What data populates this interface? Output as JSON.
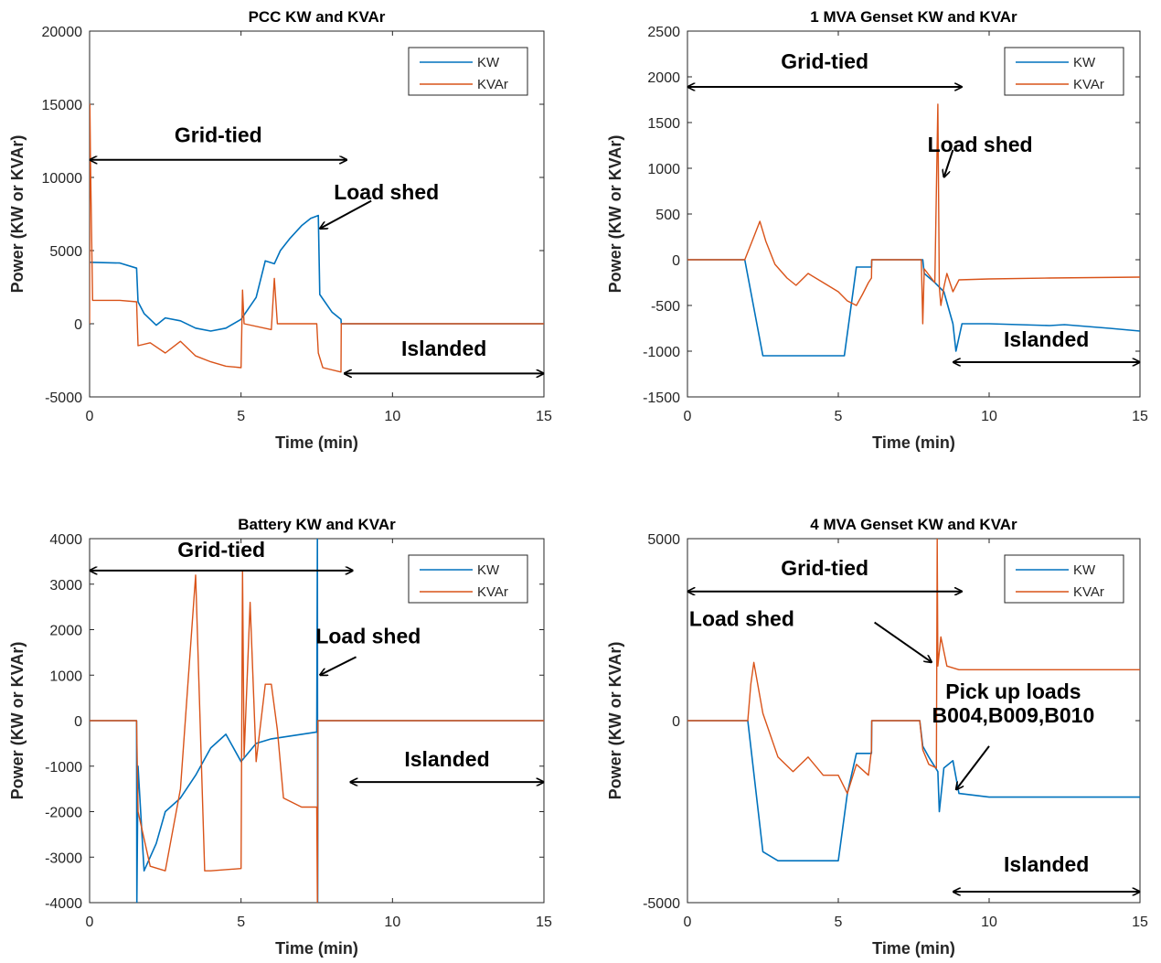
{
  "colors": {
    "kw": "#0072BD",
    "kvar": "#D95319"
  },
  "chart_data": [
    {
      "type": "line",
      "title": "PCC KW and KVAr",
      "xlabel": "Time (min)",
      "ylabel": "Power (KW or KVAr)",
      "xlim": [
        0,
        15
      ],
      "ylim": [
        -5000,
        20000
      ],
      "xticks": [
        0,
        5,
        10,
        15
      ],
      "yticks": [
        -5000,
        0,
        5000,
        10000,
        15000,
        20000
      ],
      "legend": {
        "position": "top-right",
        "entries": [
          "KW",
          "KVAr"
        ]
      },
      "series": [
        {
          "name": "KW",
          "color": "#0072BD",
          "x": [
            0,
            0.02,
            1.0,
            1.55,
            1.6,
            1.8,
            2.2,
            2.5,
            3.0,
            3.5,
            4.0,
            4.5,
            5.0,
            5.5,
            5.8,
            6.1,
            6.3,
            6.6,
            7.0,
            7.3,
            7.55,
            7.6,
            8.0,
            8.3,
            8.31,
            15
          ],
          "y": [
            4200,
            4200,
            4150,
            3800,
            1500,
            700,
            -100,
            400,
            200,
            -300,
            -500,
            -300,
            300,
            1800,
            4300,
            4100,
            5000,
            5800,
            6700,
            7200,
            7400,
            2000,
            800,
            300,
            0,
            0
          ]
        },
        {
          "name": "KVAr",
          "color": "#D95319",
          "x": [
            0,
            0.01,
            0.03,
            0.1,
            1.0,
            1.55,
            1.6,
            2.0,
            2.5,
            3.0,
            3.5,
            4.0,
            4.5,
            5.0,
            5.05,
            5.1,
            6.0,
            6.1,
            6.2,
            7.5,
            7.55,
            7.7,
            8.3,
            8.31,
            15
          ],
          "y": [
            0,
            15000,
            11000,
            1600,
            1600,
            1500,
            -1500,
            -1300,
            -2000,
            -1200,
            -2200,
            -2600,
            -2900,
            -3000,
            2300,
            0,
            -400,
            3100,
            0,
            0,
            -2000,
            -3000,
            -3300,
            0,
            0
          ]
        }
      ],
      "annotations": [
        {
          "text": "Grid-tied",
          "type": "double-arrow",
          "x": [
            0,
            8.5
          ],
          "y": 11200,
          "label_y": 12400
        },
        {
          "text": "Load shed",
          "type": "arrow",
          "from": [
            9.3,
            8400
          ],
          "to": [
            7.6,
            6500
          ],
          "label": [
            9.8,
            8500
          ]
        },
        {
          "text": "Islanded",
          "type": "double-arrow",
          "x": [
            8.4,
            15
          ],
          "y": -3400,
          "label_y": -2200
        }
      ]
    },
    {
      "type": "line",
      "title": "1 MVA Genset KW and KVAr",
      "xlabel": "Time (min)",
      "ylabel": "Power (KW or KVAr)",
      "xlim": [
        0,
        15
      ],
      "ylim": [
        -1500,
        2500
      ],
      "xticks": [
        0,
        5,
        10,
        15
      ],
      "yticks": [
        -1500,
        -1000,
        -500,
        0,
        500,
        1000,
        1500,
        2000,
        2500
      ],
      "legend": {
        "position": "top-right",
        "entries": [
          "KW",
          "KVAr"
        ]
      },
      "series": [
        {
          "name": "KW",
          "color": "#0072BD",
          "x": [
            0,
            1.9,
            2.5,
            3.5,
            5.0,
            5.2,
            5.6,
            6.1,
            6.11,
            7.8,
            7.85,
            8.2,
            8.5,
            8.8,
            8.9,
            9.1,
            10.0,
            12.0,
            12.5,
            14.0,
            15
          ],
          "y": [
            0,
            0,
            -1050,
            -1050,
            -1050,
            -1050,
            -80,
            -80,
            0,
            0,
            -150,
            -250,
            -350,
            -700,
            -1000,
            -700,
            -700,
            -720,
            -710,
            -750,
            -780
          ]
        },
        {
          "name": "KVAr",
          "color": "#D95319",
          "x": [
            0,
            1.9,
            2.2,
            2.4,
            2.6,
            2.9,
            3.3,
            3.6,
            4.0,
            4.5,
            5.0,
            5.3,
            5.6,
            5.8,
            6.0,
            6.1,
            6.11,
            7.75,
            7.8,
            7.85,
            8.2,
            8.3,
            8.35,
            8.4,
            8.5,
            8.6,
            8.8,
            9.0,
            10.0,
            12.0,
            15
          ],
          "y": [
            0,
            0,
            250,
            420,
            200,
            -50,
            -200,
            -280,
            -150,
            -250,
            -350,
            -450,
            -500,
            -380,
            -250,
            -200,
            0,
            0,
            -700,
            -100,
            -250,
            1700,
            -300,
            -500,
            -300,
            -150,
            -350,
            -220,
            -210,
            -200,
            -190
          ]
        }
      ],
      "annotations": [
        {
          "text": "Grid-tied",
          "type": "double-arrow",
          "x": [
            0,
            9.1
          ],
          "y": 1890,
          "label_y": 2090
        },
        {
          "text": "Load shed",
          "type": "arrow",
          "from": [
            8.8,
            1200
          ],
          "to": [
            8.5,
            900
          ],
          "label": [
            9.7,
            1180
          ]
        },
        {
          "text": "Islanded",
          "type": "double-arrow",
          "x": [
            8.8,
            15
          ],
          "y": -1120,
          "label_y": -950
        }
      ]
    },
    {
      "type": "line",
      "title": "Battery KW and KVAr",
      "xlabel": "Time (min)",
      "ylabel": "Power (KW or KVAr)",
      "xlim": [
        0,
        15
      ],
      "ylim": [
        -4000,
        4000
      ],
      "xticks": [
        0,
        5,
        10,
        15
      ],
      "yticks": [
        -4000,
        -3000,
        -2000,
        -1000,
        0,
        1000,
        2000,
        3000,
        4000
      ],
      "legend": {
        "position": "top-right",
        "entries": [
          "KW",
          "KVAr"
        ]
      },
      "series": [
        {
          "name": "KW",
          "color": "#0072BD",
          "x": [
            0,
            1.55,
            1.56,
            1.6,
            1.8,
            2.2,
            2.5,
            3.0,
            3.5,
            4.0,
            4.5,
            5.0,
            5.5,
            6.0,
            7.0,
            7.5,
            7.52,
            7.53,
            7.54,
            15
          ],
          "y": [
            0,
            0,
            -4000,
            -1000,
            -3300,
            -2700,
            -2000,
            -1700,
            -1200,
            -600,
            -300,
            -900,
            -500,
            -400,
            -300,
            -250,
            4000,
            -4000,
            0,
            0
          ]
        },
        {
          "name": "KVAr",
          "color": "#D95319",
          "x": [
            0,
            1.55,
            1.6,
            2.0,
            2.5,
            3.0,
            3.5,
            3.8,
            4.0,
            5.0,
            5.05,
            5.1,
            5.3,
            5.5,
            5.8,
            6.0,
            6.2,
            6.4,
            7.0,
            7.5,
            7.52,
            7.54,
            15
          ],
          "y": [
            0,
            0,
            -2000,
            -3200,
            -3300,
            -1500,
            3200,
            -3300,
            -3300,
            -3250,
            3300,
            -800,
            2600,
            -900,
            800,
            800,
            -200,
            -1700,
            -1900,
            -1900,
            -4000,
            0,
            0
          ]
        }
      ],
      "annotations": [
        {
          "text": "Grid-tied",
          "type": "double-arrow",
          "x": [
            0,
            8.7
          ],
          "y": 3300,
          "label_y": 3600
        },
        {
          "text": "Load shed",
          "type": "arrow",
          "from": [
            8.8,
            1400
          ],
          "to": [
            7.6,
            1000
          ],
          "label": [
            9.2,
            1700
          ]
        },
        {
          "text": "Islanded",
          "type": "double-arrow",
          "x": [
            8.6,
            15
          ],
          "y": -1350,
          "label_y": -1000
        }
      ]
    },
    {
      "type": "line",
      "title": "4 MVA Genset KW and KVAr",
      "xlabel": "Time (min)",
      "ylabel": "Power (KW or KVAr)",
      "xlim": [
        0,
        15
      ],
      "ylim": [
        -5000,
        5000
      ],
      "xticks": [
        0,
        5,
        10,
        15
      ],
      "yticks": [
        -5000,
        0,
        5000
      ],
      "legend": {
        "position": "top-right",
        "entries": [
          "KW",
          "KVAr"
        ]
      },
      "series": [
        {
          "name": "KW",
          "color": "#0072BD",
          "x": [
            0,
            2.0,
            2.5,
            3.0,
            4.0,
            5.0,
            5.3,
            5.6,
            6.1,
            6.11,
            7.7,
            7.8,
            8.0,
            8.3,
            8.35,
            8.5,
            8.8,
            9.0,
            10.0,
            12.0,
            15
          ],
          "y": [
            0,
            0,
            -3600,
            -3850,
            -3850,
            -3850,
            -2000,
            -900,
            -900,
            0,
            0,
            -700,
            -1000,
            -1400,
            -2500,
            -1300,
            -1100,
            -2000,
            -2100,
            -2100,
            -2100
          ]
        },
        {
          "name": "KVAr",
          "color": "#D95319",
          "x": [
            0,
            2.0,
            2.1,
            2.2,
            2.5,
            3.0,
            3.5,
            4.0,
            4.5,
            5.0,
            5.3,
            5.6,
            6.0,
            6.1,
            6.11,
            7.7,
            7.8,
            8.0,
            8.25,
            8.28,
            8.3,
            8.4,
            8.6,
            9.0,
            10.0,
            12.0,
            15
          ],
          "y": [
            0,
            0,
            1000,
            1600,
            200,
            -1000,
            -1400,
            -1000,
            -1500,
            -1500,
            -2000,
            -1200,
            -1500,
            -800,
            0,
            0,
            -800,
            -1200,
            -1300,
            5000,
            1500,
            2300,
            1500,
            1400,
            1400,
            1400,
            1400
          ]
        }
      ],
      "annotations": [
        {
          "text": "Grid-tied",
          "type": "double-arrow",
          "x": [
            0,
            9.1
          ],
          "y": 3550,
          "label_y": 4000
        },
        {
          "text": "Load shed",
          "type": "arrow",
          "from": [
            6.2,
            2700
          ],
          "to": [
            8.1,
            1600
          ],
          "label": [
            1.8,
            2600
          ]
        },
        {
          "text": "Pick up loads",
          "type": "label",
          "label": [
            10.8,
            600
          ]
        },
        {
          "text": "B004,B009,B010",
          "type": "arrow",
          "from": [
            10.0,
            -700
          ],
          "to": [
            8.9,
            -1900
          ],
          "label": [
            10.8,
            -50
          ]
        },
        {
          "text": "Islanded",
          "type": "double-arrow",
          "x": [
            8.8,
            15
          ],
          "y": -4700,
          "label_y": -4150
        }
      ]
    }
  ]
}
